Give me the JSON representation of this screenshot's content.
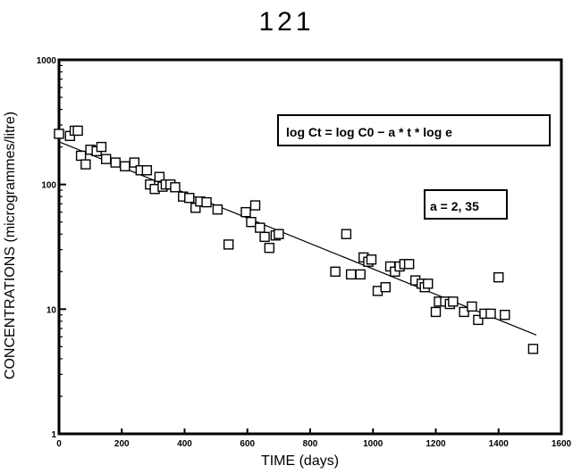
{
  "page": {
    "number": "121"
  },
  "annotations": {
    "equation": "log Ct = log C0 − a * t  * log  e",
    "coefficient": "a = 2, 35"
  },
  "chart_data": {
    "type": "scatter",
    "title": "",
    "xlabel": "TIME (days)",
    "ylabel": "CONCENTRATIONS (microgrammes/litre)",
    "xlim": [
      0,
      1600
    ],
    "ylim": [
      1,
      1000
    ],
    "yscale": "log",
    "grid": false,
    "x_ticks": [
      0,
      200,
      400,
      600,
      800,
      1000,
      1200,
      1400,
      1600
    ],
    "y_ticks": [
      1,
      10,
      100,
      1000
    ],
    "x_tick_labels": [
      "0",
      "200",
      "400",
      "600",
      "800",
      "1000",
      "1200",
      "1400",
      "1600"
    ],
    "y_tick_labels": [
      "1",
      "10",
      "100",
      "1000"
    ],
    "marker": "open-square",
    "points": [
      [
        0,
        255
      ],
      [
        35,
        245
      ],
      [
        50,
        270
      ],
      [
        60,
        270
      ],
      [
        70,
        170
      ],
      [
        85,
        145
      ],
      [
        100,
        190
      ],
      [
        120,
        185
      ],
      [
        135,
        200
      ],
      [
        150,
        160
      ],
      [
        180,
        150
      ],
      [
        210,
        140
      ],
      [
        240,
        150
      ],
      [
        260,
        130
      ],
      [
        280,
        130
      ],
      [
        290,
        100
      ],
      [
        305,
        92
      ],
      [
        320,
        115
      ],
      [
        330,
        96
      ],
      [
        340,
        100
      ],
      [
        355,
        100
      ],
      [
        370,
        95
      ],
      [
        395,
        80
      ],
      [
        415,
        78
      ],
      [
        435,
        65
      ],
      [
        450,
        73
      ],
      [
        470,
        72
      ],
      [
        505,
        63
      ],
      [
        540,
        33
      ],
      [
        595,
        60
      ],
      [
        612,
        50
      ],
      [
        625,
        68
      ],
      [
        640,
        45
      ],
      [
        655,
        38
      ],
      [
        670,
        31
      ],
      [
        690,
        39
      ],
      [
        700,
        40
      ],
      [
        880,
        20
      ],
      [
        915,
        40
      ],
      [
        930,
        19
      ],
      [
        960,
        19
      ],
      [
        970,
        26
      ],
      [
        985,
        24
      ],
      [
        995,
        25
      ],
      [
        1015,
        14
      ],
      [
        1040,
        15
      ],
      [
        1055,
        22
      ],
      [
        1070,
        20
      ],
      [
        1085,
        22
      ],
      [
        1100,
        23
      ],
      [
        1115,
        23
      ],
      [
        1135,
        17
      ],
      [
        1155,
        16
      ],
      [
        1165,
        15
      ],
      [
        1175,
        16
      ],
      [
        1200,
        9.5
      ],
      [
        1210,
        11.5
      ],
      [
        1230,
        11.5
      ],
      [
        1245,
        11
      ],
      [
        1255,
        11.5
      ],
      [
        1290,
        9.5
      ],
      [
        1315,
        10.5
      ],
      [
        1335,
        8.2
      ],
      [
        1355,
        9.2
      ],
      [
        1375,
        9.2
      ],
      [
        1400,
        18
      ],
      [
        1420,
        9
      ],
      [
        1510,
        4.8
      ]
    ],
    "fit_line": {
      "x": [
        0,
        1520
      ],
      "y": [
        220,
        6.2
      ]
    }
  }
}
